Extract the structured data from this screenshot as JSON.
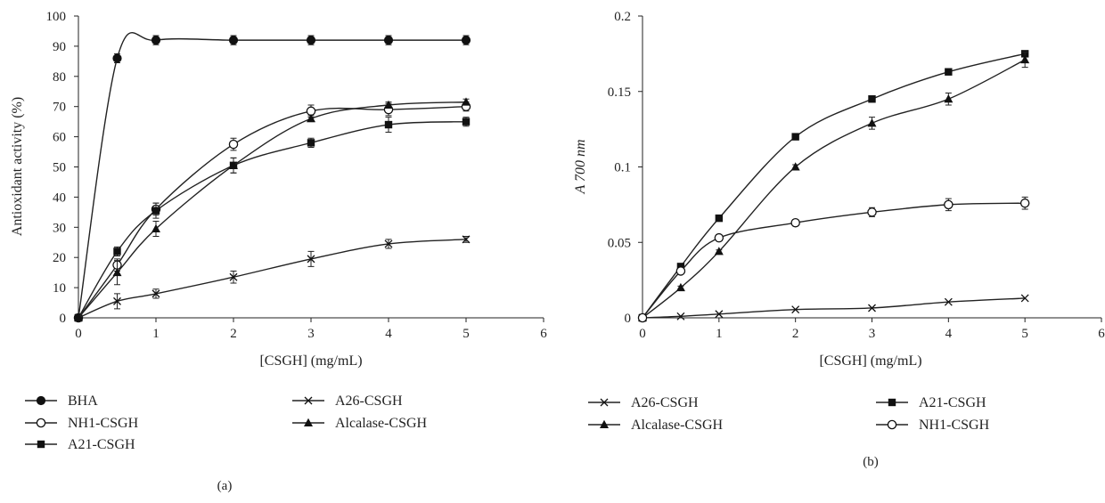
{
  "chart_data": [
    {
      "type": "line",
      "panel_label": "(a)",
      "xlabel": "[CSGH] (mg/mL)",
      "ylabel": "Antioxidant activity (%)",
      "xlim": [
        0,
        6
      ],
      "ylim": [
        0,
        100
      ],
      "xticks": [
        "0",
        "1",
        "2",
        "3",
        "4",
        "5",
        "6"
      ],
      "yticks": [
        "0",
        "10",
        "20",
        "30",
        "40",
        "50",
        "60",
        "70",
        "80",
        "90",
        "100"
      ],
      "grid": false,
      "legend_position": "bottom",
      "x": [
        0,
        0.5,
        1,
        2,
        3,
        4,
        5
      ],
      "series": [
        {
          "name": "BHA",
          "marker": "filled-circle",
          "values": [
            0,
            86,
            92,
            92,
            92,
            92,
            92
          ],
          "errors": [
            0,
            1.5,
            1.5,
            1.5,
            1.5,
            1.5,
            1.5
          ]
        },
        {
          "name": "NH1-CSGH",
          "marker": "open-circle",
          "values": [
            0,
            17.5,
            36,
            57.5,
            68.5,
            69,
            70
          ],
          "errors": [
            0,
            2,
            2,
            2,
            2,
            2,
            1.5
          ]
        },
        {
          "name": "A21-CSGH",
          "marker": "filled-square",
          "values": [
            0,
            22,
            35.5,
            50.5,
            58,
            64,
            65
          ],
          "errors": [
            0,
            1.5,
            2.5,
            2.5,
            1.5,
            2.5,
            1.5
          ]
        },
        {
          "name": "A26-CSGH",
          "marker": "cross",
          "values": [
            0,
            5.5,
            8,
            13.5,
            19.5,
            24.5,
            26
          ],
          "errors": [
            0,
            2.5,
            1.5,
            2,
            2.5,
            1.5,
            1
          ]
        },
        {
          "name": "Alcalase-CSGH",
          "marker": "filled-triangle",
          "values": [
            0,
            15,
            29.5,
            50.5,
            66,
            70.5,
            71.5
          ],
          "errors": [
            0,
            4,
            2.5,
            2.5,
            1,
            1,
            1
          ]
        }
      ],
      "legend_order": [
        "BHA",
        "A26-CSGH",
        "NH1-CSGH",
        "Alcalase-CSGH",
        "A21-CSGH"
      ]
    },
    {
      "type": "line",
      "panel_label": "(b)",
      "xlabel": "[CSGH] (mg/mL)",
      "ylabel": "A 700 nm",
      "xlim": [
        0,
        6
      ],
      "ylim": [
        0,
        0.2
      ],
      "xticks": [
        "0",
        "1",
        "2",
        "3",
        "4",
        "5",
        "6"
      ],
      "yticks": [
        "0",
        "0.05",
        "0.1",
        "0.15",
        "0.2"
      ],
      "grid": false,
      "legend_position": "bottom",
      "x": [
        0,
        0.5,
        1,
        2,
        3,
        4,
        5
      ],
      "series": [
        {
          "name": "A26-CSGH",
          "marker": "cross",
          "values": [
            0,
            0.001,
            0.0025,
            0.0055,
            0.0065,
            0.0105,
            0.013
          ],
          "errors": [
            0,
            0,
            0,
            0,
            0,
            0,
            0
          ]
        },
        {
          "name": "A21-CSGH",
          "marker": "filled-square",
          "values": [
            0,
            0.034,
            0.066,
            0.12,
            0.145,
            0.163,
            0.175
          ],
          "errors": [
            0,
            0.001,
            0.0015,
            0.0015,
            0.0015,
            0.0015,
            0.001
          ]
        },
        {
          "name": "Alcalase-CSGH",
          "marker": "filled-triangle",
          "values": [
            0,
            0.02,
            0.044,
            0.1,
            0.129,
            0.145,
            0.171
          ],
          "errors": [
            0,
            0.001,
            0.001,
            0.0015,
            0.004,
            0.004,
            0.005
          ]
        },
        {
          "name": "NH1-CSGH",
          "marker": "open-circle",
          "values": [
            0,
            0.031,
            0.053,
            0.063,
            0.07,
            0.075,
            0.076
          ],
          "errors": [
            0,
            0.001,
            0.002,
            0.002,
            0.003,
            0.004,
            0.004
          ]
        }
      ],
      "legend_order": [
        "A26-CSGH",
        "A21-CSGH",
        "Alcalase-CSGH",
        "NH1-CSGH"
      ]
    }
  ]
}
